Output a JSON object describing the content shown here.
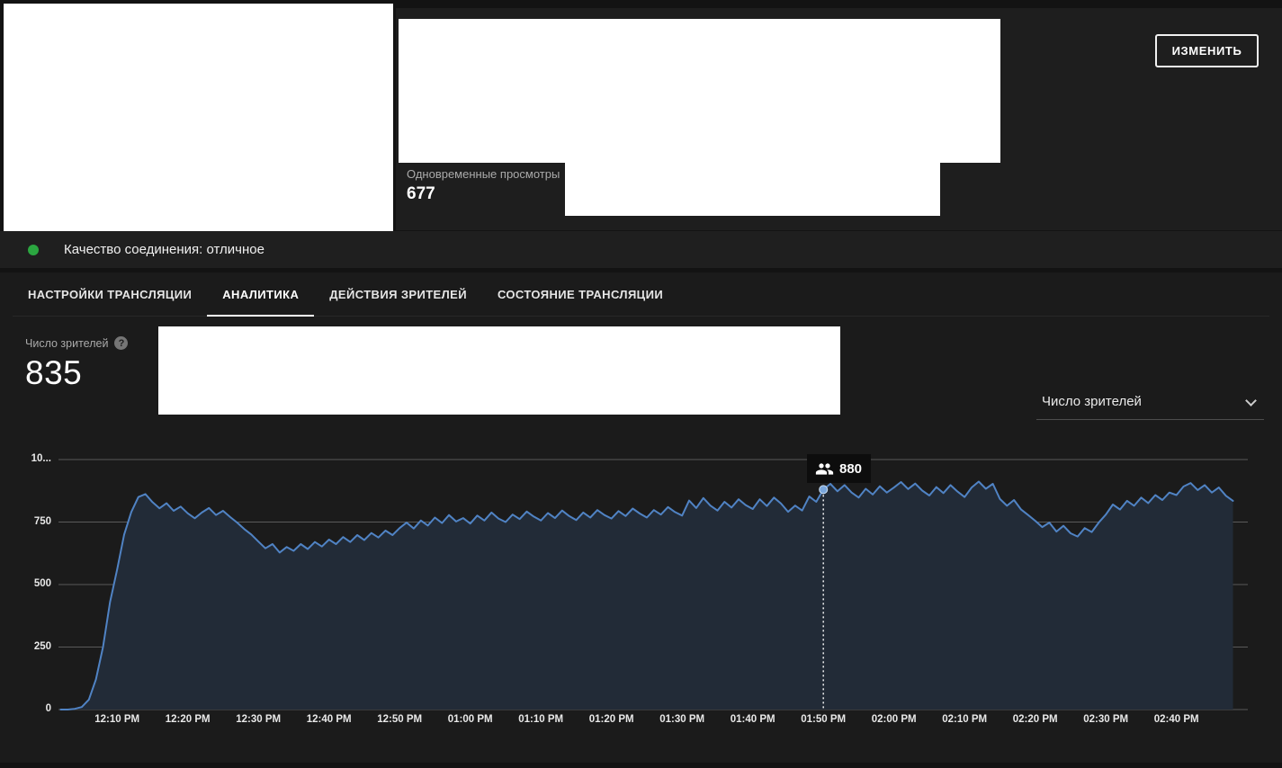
{
  "stats_panel": {
    "concurrent_label": "Одновременные просмотры",
    "concurrent_value": "677",
    "edit_button": "ИЗМЕНИТЬ"
  },
  "connection": {
    "label": "Качество соединения: отличное",
    "status_color": "#2ba640"
  },
  "tabs": [
    {
      "label": "НАСТРОЙКИ ТРАНСЛЯЦИИ",
      "active": false
    },
    {
      "label": "АНАЛИТИКА",
      "active": true
    },
    {
      "label": "ДЕЙСТВИЯ ЗРИТЕЛЕЙ",
      "active": false
    },
    {
      "label": "СОСТОЯНИЕ ТРАНСЛЯЦИИ",
      "active": false
    }
  ],
  "analytics": {
    "metric_label": "Число зрителей",
    "metric_help_glyph": "?",
    "metric_value": "835",
    "dropdown_value": "Число зрителей"
  },
  "chart_data": {
    "type": "area",
    "title": "Число зрителей",
    "xlabel": "",
    "ylabel": "",
    "ylim": [
      0,
      1000
    ],
    "grid": true,
    "legend_position": "none",
    "line_color": "#5083c4",
    "fill_color": "#222b37",
    "marker_color": "#7aa7dc",
    "yticks": [
      {
        "v": 0,
        "label": "0"
      },
      {
        "v": 250,
        "label": "250"
      },
      {
        "v": 500,
        "label": "500"
      },
      {
        "v": 750,
        "label": "750"
      },
      {
        "v": 1000,
        "label": "10..."
      }
    ],
    "xticks": [
      {
        "t": 730,
        "label": "12:10 PM"
      },
      {
        "t": 740,
        "label": "12:20 PM"
      },
      {
        "t": 750,
        "label": "12:30 PM"
      },
      {
        "t": 760,
        "label": "12:40 PM"
      },
      {
        "t": 770,
        "label": "12:50 PM"
      },
      {
        "t": 780,
        "label": "01:00 PM"
      },
      {
        "t": 790,
        "label": "01:10 PM"
      },
      {
        "t": 800,
        "label": "01:20 PM"
      },
      {
        "t": 810,
        "label": "01:30 PM"
      },
      {
        "t": 820,
        "label": "01:40 PM"
      },
      {
        "t": 830,
        "label": "01:50 PM"
      },
      {
        "t": 840,
        "label": "02:00 PM"
      },
      {
        "t": 850,
        "label": "02:10 PM"
      },
      {
        "t": 860,
        "label": "02:20 PM"
      },
      {
        "t": 870,
        "label": "02:30 PM"
      },
      {
        "t": 880,
        "label": "02:40 PM"
      }
    ],
    "tooltip": {
      "t": 830,
      "value": 880,
      "label": "880"
    },
    "series": [
      {
        "name": "Число зрителей",
        "points": [
          [
            722,
            0
          ],
          [
            723,
            0
          ],
          [
            724,
            3
          ],
          [
            725,
            10
          ],
          [
            726,
            40
          ],
          [
            727,
            120
          ],
          [
            728,
            250
          ],
          [
            729,
            430
          ],
          [
            730,
            560
          ],
          [
            731,
            700
          ],
          [
            732,
            790
          ],
          [
            733,
            850
          ],
          [
            734,
            862
          ],
          [
            735,
            830
          ],
          [
            736,
            805
          ],
          [
            737,
            825
          ],
          [
            738,
            795
          ],
          [
            739,
            812
          ],
          [
            740,
            785
          ],
          [
            741,
            765
          ],
          [
            742,
            788
          ],
          [
            743,
            806
          ],
          [
            744,
            778
          ],
          [
            745,
            795
          ],
          [
            746,
            770
          ],
          [
            747,
            748
          ],
          [
            748,
            722
          ],
          [
            749,
            700
          ],
          [
            750,
            672
          ],
          [
            751,
            645
          ],
          [
            752,
            662
          ],
          [
            753,
            628
          ],
          [
            754,
            650
          ],
          [
            755,
            635
          ],
          [
            756,
            662
          ],
          [
            757,
            642
          ],
          [
            758,
            670
          ],
          [
            759,
            652
          ],
          [
            760,
            680
          ],
          [
            761,
            662
          ],
          [
            762,
            690
          ],
          [
            763,
            670
          ],
          [
            764,
            698
          ],
          [
            765,
            678
          ],
          [
            766,
            706
          ],
          [
            767,
            688
          ],
          [
            768,
            716
          ],
          [
            769,
            698
          ],
          [
            770,
            726
          ],
          [
            771,
            748
          ],
          [
            772,
            724
          ],
          [
            773,
            756
          ],
          [
            774,
            736
          ],
          [
            775,
            768
          ],
          [
            776,
            746
          ],
          [
            777,
            778
          ],
          [
            778,
            752
          ],
          [
            779,
            766
          ],
          [
            780,
            744
          ],
          [
            781,
            776
          ],
          [
            782,
            756
          ],
          [
            783,
            788
          ],
          [
            784,
            764
          ],
          [
            785,
            750
          ],
          [
            786,
            780
          ],
          [
            787,
            762
          ],
          [
            788,
            792
          ],
          [
            789,
            772
          ],
          [
            790,
            756
          ],
          [
            791,
            786
          ],
          [
            792,
            766
          ],
          [
            793,
            796
          ],
          [
            794,
            774
          ],
          [
            795,
            758
          ],
          [
            796,
            788
          ],
          [
            797,
            768
          ],
          [
            798,
            798
          ],
          [
            799,
            778
          ],
          [
            800,
            764
          ],
          [
            801,
            794
          ],
          [
            802,
            774
          ],
          [
            803,
            804
          ],
          [
            804,
            784
          ],
          [
            805,
            768
          ],
          [
            806,
            798
          ],
          [
            807,
            780
          ],
          [
            808,
            810
          ],
          [
            809,
            790
          ],
          [
            810,
            776
          ],
          [
            811,
            836
          ],
          [
            812,
            806
          ],
          [
            813,
            846
          ],
          [
            814,
            816
          ],
          [
            815,
            796
          ],
          [
            816,
            831
          ],
          [
            817,
            808
          ],
          [
            818,
            841
          ],
          [
            819,
            818
          ],
          [
            820,
            802
          ],
          [
            821,
            841
          ],
          [
            822,
            814
          ],
          [
            823,
            848
          ],
          [
            824,
            824
          ],
          [
            825,
            791
          ],
          [
            826,
            816
          ],
          [
            827,
            796
          ],
          [
            828,
            852
          ],
          [
            829,
            831
          ],
          [
            830,
            880
          ],
          [
            831,
            903
          ],
          [
            832,
            873
          ],
          [
            833,
            898
          ],
          [
            834,
            868
          ],
          [
            835,
            848
          ],
          [
            836,
            883
          ],
          [
            837,
            860
          ],
          [
            838,
            893
          ],
          [
            839,
            868
          ],
          [
            840,
            888
          ],
          [
            841,
            910
          ],
          [
            842,
            882
          ],
          [
            843,
            904
          ],
          [
            844,
            876
          ],
          [
            845,
            856
          ],
          [
            846,
            890
          ],
          [
            847,
            866
          ],
          [
            848,
            898
          ],
          [
            849,
            872
          ],
          [
            850,
            850
          ],
          [
            851,
            888
          ],
          [
            852,
            912
          ],
          [
            853,
            883
          ],
          [
            854,
            903
          ],
          [
            855,
            842
          ],
          [
            856,
            815
          ],
          [
            857,
            838
          ],
          [
            858,
            800
          ],
          [
            859,
            778
          ],
          [
            860,
            755
          ],
          [
            861,
            730
          ],
          [
            862,
            748
          ],
          [
            863,
            712
          ],
          [
            864,
            735
          ],
          [
            865,
            705
          ],
          [
            866,
            692
          ],
          [
            867,
            726
          ],
          [
            868,
            710
          ],
          [
            869,
            748
          ],
          [
            870,
            780
          ],
          [
            871,
            820
          ],
          [
            872,
            800
          ],
          [
            873,
            835
          ],
          [
            874,
            815
          ],
          [
            875,
            848
          ],
          [
            876,
            826
          ],
          [
            877,
            858
          ],
          [
            878,
            838
          ],
          [
            879,
            868
          ],
          [
            880,
            858
          ],
          [
            881,
            892
          ],
          [
            882,
            906
          ],
          [
            883,
            878
          ],
          [
            884,
            898
          ],
          [
            885,
            868
          ],
          [
            886,
            888
          ],
          [
            887,
            855
          ],
          [
            888,
            835
          ]
        ]
      }
    ]
  }
}
